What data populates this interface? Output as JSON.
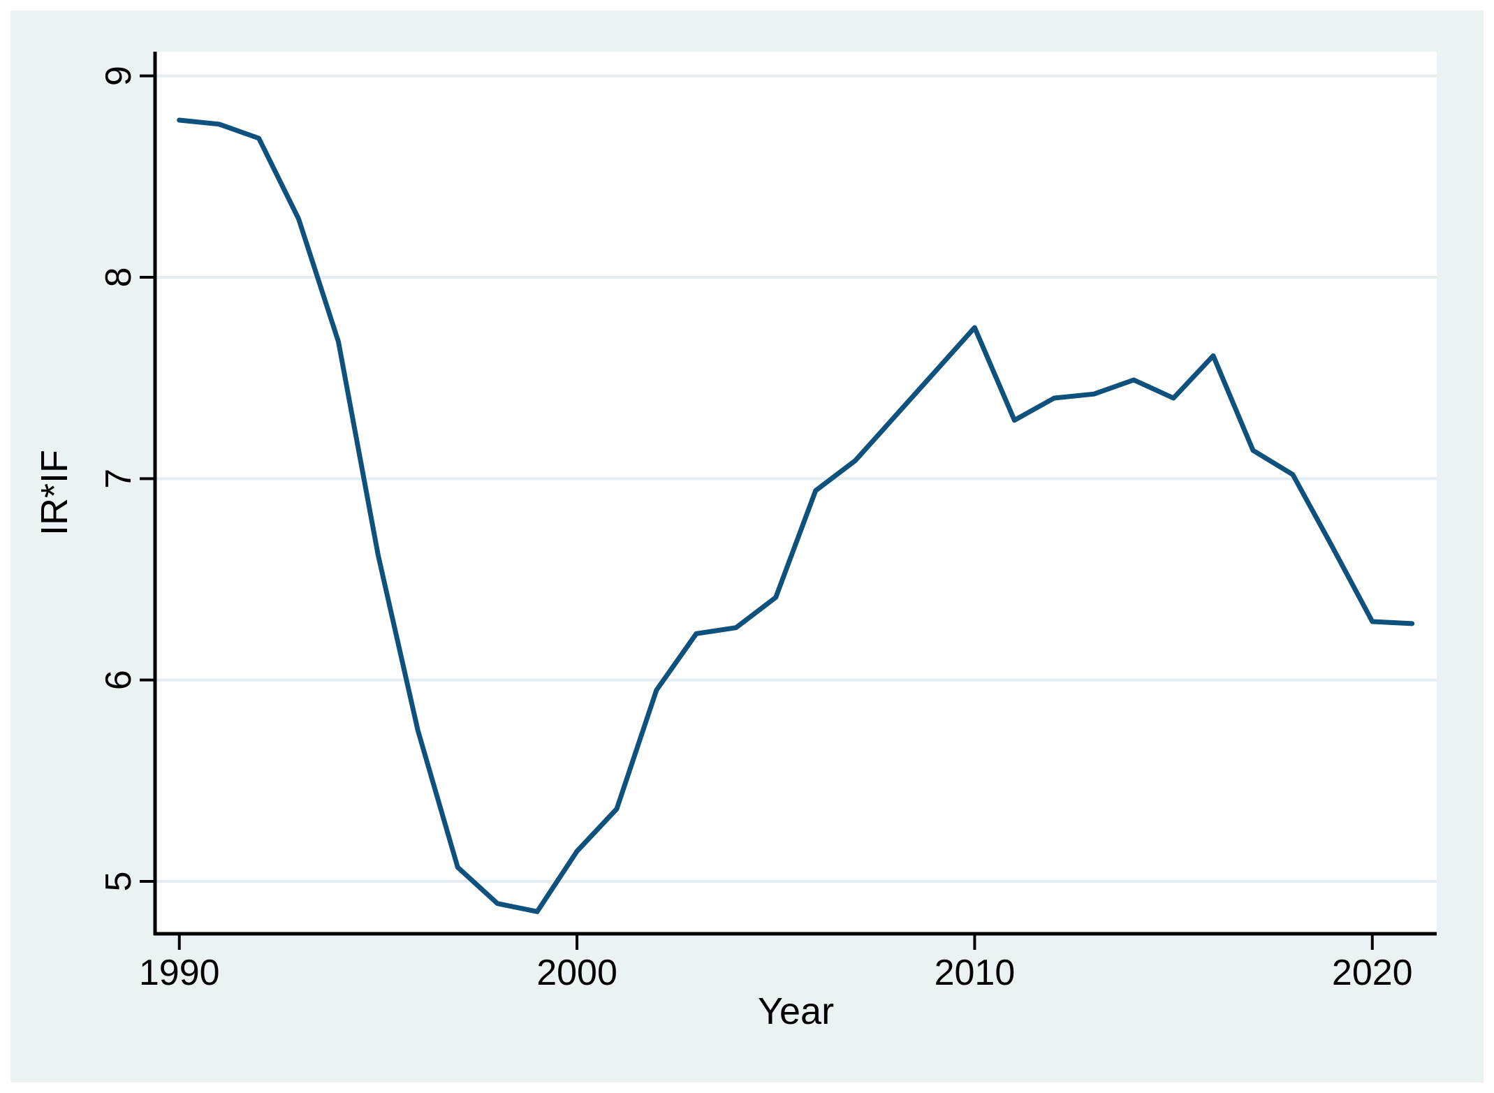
{
  "chart_data": {
    "type": "line",
    "title": "",
    "xlabel": "Year",
    "ylabel": "IR*IF",
    "x": [
      1990,
      1991,
      1992,
      1993,
      1994,
      1995,
      1996,
      1997,
      1998,
      1999,
      2000,
      2001,
      2002,
      2003,
      2004,
      2005,
      2006,
      2007,
      2008,
      2009,
      2010,
      2011,
      2012,
      2013,
      2014,
      2015,
      2016,
      2017,
      2018,
      2019,
      2020,
      2021
    ],
    "values": [
      8.78,
      8.76,
      8.69,
      8.29,
      7.68,
      6.62,
      5.75,
      5.07,
      4.89,
      4.85,
      5.15,
      5.36,
      5.95,
      6.23,
      6.26,
      6.41,
      6.94,
      7.09,
      7.31,
      7.53,
      7.75,
      7.29,
      7.4,
      7.42,
      7.49,
      7.4,
      7.61,
      7.14,
      7.02,
      6.66,
      6.29,
      6.28
    ],
    "x_ticks": [
      1990,
      2000,
      2010,
      2020
    ],
    "y_ticks": [
      5,
      6,
      7,
      8,
      9
    ],
    "xlim": [
      1989.39,
      2021.62
    ],
    "ylim": [
      4.74,
      9.12
    ],
    "grid": "horizontal",
    "legend": "none",
    "colors": {
      "line": "#0d517c",
      "background": "#eaf2f3",
      "plot_background": "#ffffff",
      "gridline": "#e2eef0",
      "axis": "#000000",
      "text": "#000000"
    }
  }
}
